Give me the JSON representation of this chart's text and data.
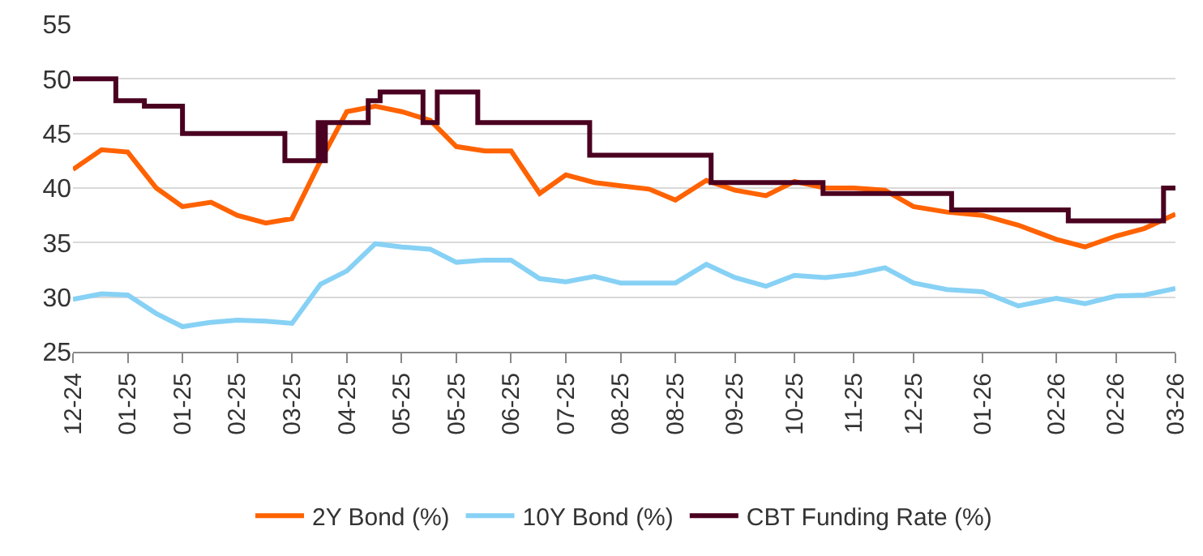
{
  "chart_data": {
    "type": "line",
    "x": [
      "2024-12-16",
      "2024-12-28",
      "2025-01-08",
      "2025-01-20",
      "2025-01-31",
      "2025-02-12",
      "2025-02-23",
      "2025-03-07",
      "2025-03-18",
      "2025-03-30",
      "2025-04-10",
      "2025-04-22",
      "2025-05-03",
      "2025-05-15",
      "2025-05-26",
      "2025-06-07",
      "2025-06-18",
      "2025-06-30",
      "2025-07-11",
      "2025-07-23",
      "2025-08-03",
      "2025-08-15",
      "2025-08-26",
      "2025-09-08",
      "2025-09-20",
      "2025-10-03",
      "2025-10-15",
      "2025-10-28",
      "2025-11-09",
      "2025-11-22",
      "2025-12-04",
      "2025-12-18",
      "2026-01-02",
      "2026-01-17",
      "2026-02-02",
      "2026-02-14",
      "2026-02-27",
      "2026-03-11",
      "2026-03-24"
    ],
    "series": [
      {
        "name": "2Y Bond (%)",
        "color": "#ff6200",
        "values": [
          41.7,
          43.5,
          43.3,
          40.0,
          38.3,
          38.7,
          37.5,
          36.8,
          37.2,
          42.5,
          47.0,
          47.5,
          47.0,
          46.2,
          43.8,
          43.4,
          43.4,
          39.5,
          41.2,
          40.5,
          40.2,
          39.9,
          38.9,
          40.7,
          39.8,
          39.3,
          40.6,
          40.0,
          40.0,
          39.8,
          38.3,
          37.8,
          37.5,
          36.6,
          35.3,
          34.6,
          35.6,
          36.3,
          37.6
        ]
      },
      {
        "name": "10Y Bond (%)",
        "color": "#87d1f5",
        "values": [
          29.8,
          30.3,
          30.2,
          28.5,
          27.3,
          27.7,
          27.9,
          27.8,
          27.6,
          31.2,
          32.4,
          34.9,
          34.6,
          34.4,
          33.2,
          33.4,
          33.4,
          31.7,
          31.4,
          31.9,
          31.3,
          31.3,
          31.3,
          33.0,
          31.8,
          31.0,
          32.0,
          31.8,
          32.1,
          32.7,
          31.3,
          30.7,
          30.5,
          29.2,
          29.9,
          29.4,
          30.1,
          30.2,
          30.8
        ]
      },
      {
        "name": "CBT Funding Rate (%)",
        "color": "#4a0020",
        "type": "step",
        "x": [
          "2024-12-16",
          "2025-01-03",
          "2025-01-15",
          "2025-01-31",
          "2025-03-15",
          "2025-03-29",
          "2025-03-30",
          "2025-04-01",
          "2025-04-19",
          "2025-04-24",
          "2025-05-12",
          "2025-05-18",
          "2025-06-04",
          "2025-07-21",
          "2025-09-10",
          "2025-10-27",
          "2025-12-20",
          "2026-02-07",
          "2026-03-19",
          "2026-03-24"
        ],
        "values": [
          50,
          48,
          47.5,
          45,
          42.5,
          46,
          42.5,
          46,
          48,
          48.8,
          46,
          48.8,
          46,
          43,
          40.5,
          39.5,
          38,
          37,
          40,
          40
        ]
      }
    ],
    "ylim": [
      25,
      55
    ],
    "yticks": [
      25,
      30,
      35,
      40,
      45,
      50,
      55
    ],
    "xlim": [
      "2024-12-16",
      "2026-03-24"
    ],
    "xticks": [
      {
        "value": "2024-12-16",
        "label": "12-24"
      },
      {
        "value": "2025-01-08",
        "label": "01-25"
      },
      {
        "value": "2025-01-31",
        "label": "01-25"
      },
      {
        "value": "2025-02-23",
        "label": "02-25"
      },
      {
        "value": "2025-03-18",
        "label": "03-25"
      },
      {
        "value": "2025-04-10",
        "label": "04-25"
      },
      {
        "value": "2025-05-03",
        "label": "05-25"
      },
      {
        "value": "2025-05-26",
        "label": "05-25"
      },
      {
        "value": "2025-06-18",
        "label": "06-25"
      },
      {
        "value": "2025-07-11",
        "label": "07-25"
      },
      {
        "value": "2025-08-03",
        "label": "08-25"
      },
      {
        "value": "2025-08-26",
        "label": "08-25"
      },
      {
        "value": "2025-09-20",
        "label": "09-25"
      },
      {
        "value": "2025-10-15",
        "label": "10-25"
      },
      {
        "value": "2025-11-09",
        "label": "11-25"
      },
      {
        "value": "2025-12-04",
        "label": "12-25"
      },
      {
        "value": "2026-01-02",
        "label": "01-26"
      },
      {
        "value": "2026-02-02",
        "label": "02-26"
      },
      {
        "value": "2026-02-27",
        "label": "02-26"
      },
      {
        "value": "2026-03-24",
        "label": "03-26"
      }
    ],
    "grid": "y",
    "legend": "bottom",
    "marker": "none",
    "line_style": "solid"
  }
}
